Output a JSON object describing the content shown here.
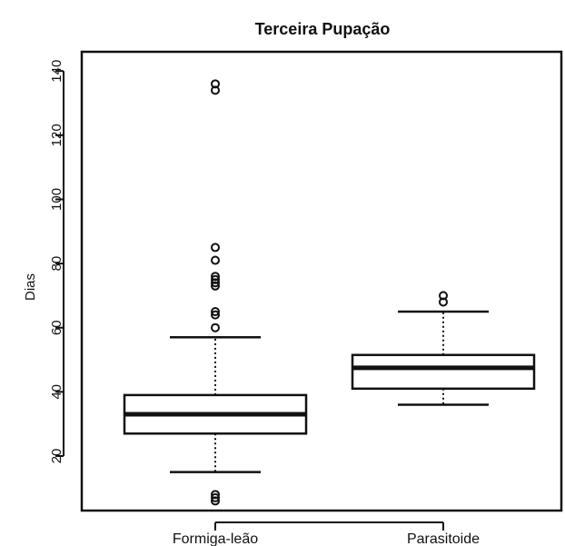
{
  "chart_data": {
    "type": "boxplot",
    "title": "Terceira Pupação",
    "ylabel": "Dias",
    "xlabel": "",
    "ylim": [
      3,
      146
    ],
    "yticks": [
      20,
      40,
      60,
      80,
      100,
      120,
      140
    ],
    "yticklabels": [
      "20",
      "40",
      "60",
      "80",
      "100",
      "120",
      "140"
    ],
    "categories": [
      "Formiga-leão",
      "Parasitoide"
    ],
    "boxes": [
      {
        "category": "Formiga-leão",
        "whisker_low": 15,
        "q1": 27,
        "median": 33,
        "q3": 39,
        "whisker_high": 57,
        "outliers": [
          6,
          7,
          8,
          60,
          64,
          65,
          73,
          74,
          75,
          76,
          81,
          85,
          134,
          136
        ]
      },
      {
        "category": "Parasitoide",
        "whisker_low": 36,
        "q1": 41,
        "median": 47.5,
        "q3": 51.5,
        "whisker_high": 65,
        "outliers": [
          68,
          70
        ]
      }
    ],
    "grid": false,
    "legend": "none"
  }
}
